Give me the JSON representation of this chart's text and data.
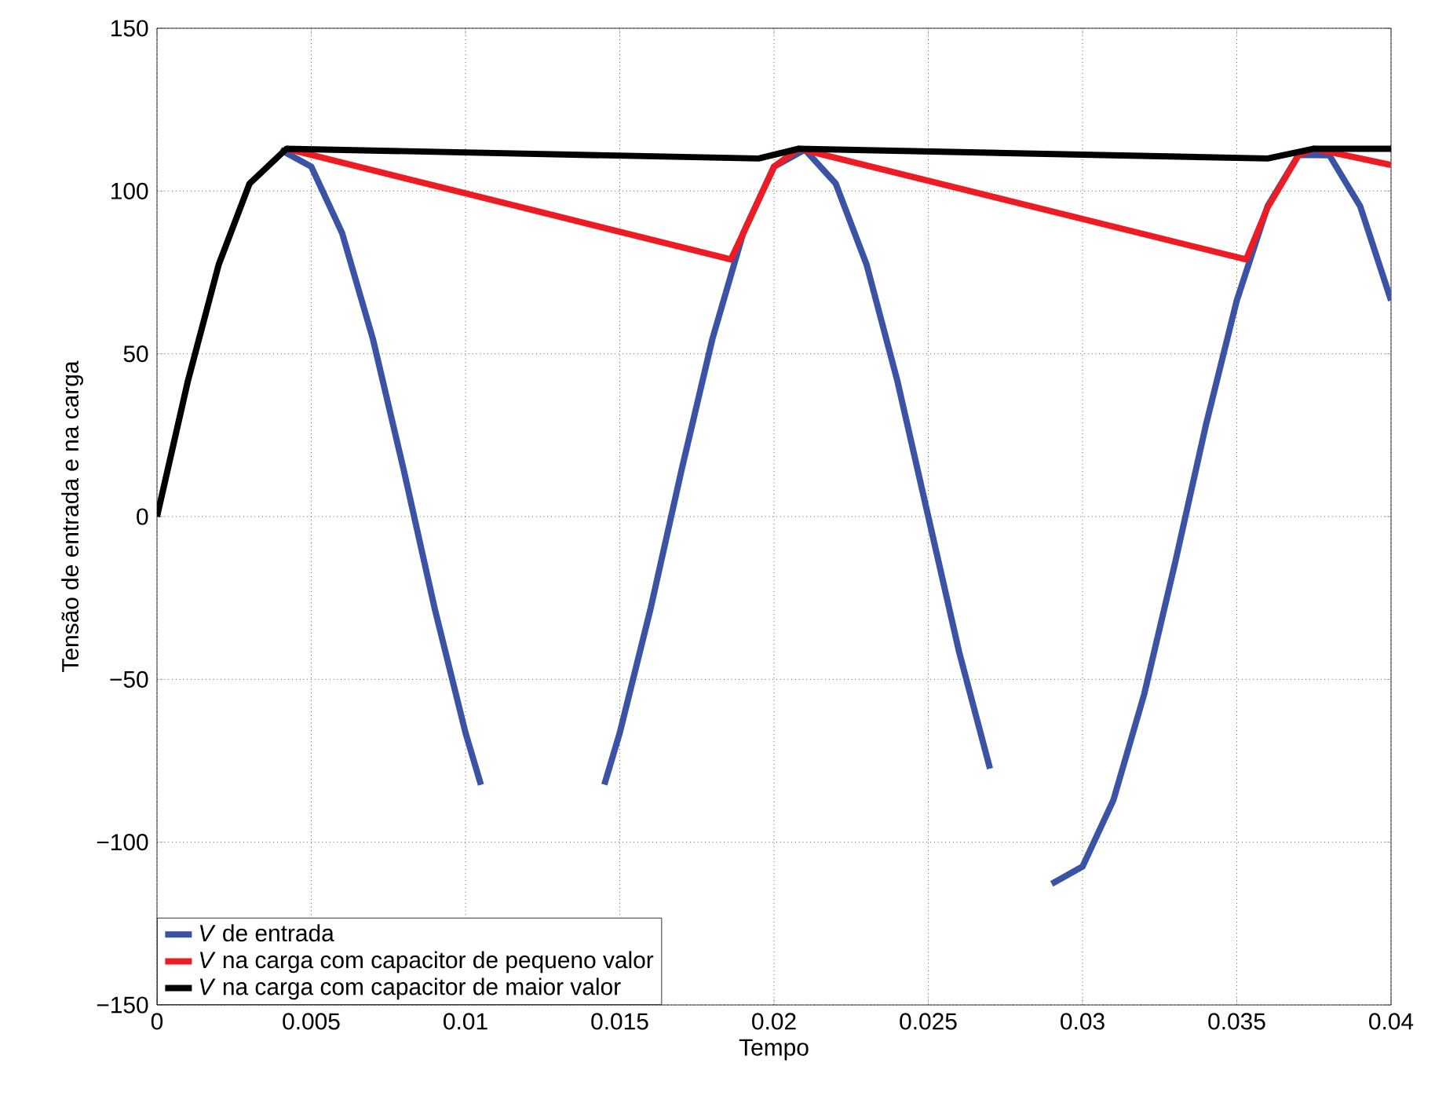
{
  "chart_data": {
    "type": "line",
    "xlabel": "Tempo",
    "ylabel": "Tensão de entrada e na carga",
    "xlim": [
      0,
      0.04
    ],
    "ylim": [
      -150,
      150
    ],
    "xticks": [
      0,
      0.005,
      0.01,
      0.015,
      0.02,
      0.025,
      0.03,
      0.035,
      0.04
    ],
    "yticks": [
      {
        "value": -150,
        "label": "−150"
      },
      {
        "value": -100,
        "label": "−100"
      },
      {
        "value": -50,
        "label": "−50"
      },
      0,
      50,
      100,
      150
    ],
    "grid": true,
    "legend": "bottom left",
    "line_style": "solid",
    "marker": "none",
    "series": [
      {
        "name": "*V* de entrada",
        "color": "#3a53a4",
        "x": [
          0.004,
          0.005,
          0.006,
          0.007,
          0.008,
          0.009,
          0.01,
          0.0105,
          0.011,
          0.012,
          0.013,
          0.014,
          0.0145,
          0.015,
          0.016,
          0.017,
          0.018,
          0.019,
          0.02,
          0.021,
          0.022,
          0.023,
          0.024,
          0.025,
          0.026,
          0.027,
          0.028,
          0.029,
          0.03,
          0.031,
          0.032,
          0.033,
          0.034,
          0.035,
          0.036,
          0.037,
          0.038,
          0.039,
          0.04
        ],
        "values": [
          112.7,
          107.5,
          87.1,
          54.5,
          14.2,
          -28.2,
          -66.4,
          -82.4,
          null,
          null,
          null,
          null,
          -82.3,
          -66.4,
          -28.2,
          14.2,
          54.5,
          87.1,
          107.5,
          112.7,
          102.3,
          77.4,
          41.6,
          0,
          -41.6,
          -77.4,
          null,
          -112.8,
          -107.5,
          -87.1,
          -54.5,
          -14.2,
          28.2,
          66.4,
          95.4,
          111.1,
          111,
          95.3,
          66.4
        ]
      },
      {
        "name": "*V* na carga com capacitor de pequeno valor",
        "color": "#ed1c24",
        "x": [
          0.0042,
          0.0186,
          0.019,
          0.02,
          0.0208,
          0.0353,
          0.036,
          0.037,
          0.0375,
          0.04
        ],
        "values": [
          113,
          79,
          87,
          107.5,
          113,
          79,
          95,
          111,
          113,
          108
        ]
      },
      {
        "name": "*V* na carga com capacitor de maior valor",
        "color": "#000000",
        "x": [
          0,
          0.001,
          0.002,
          0.003,
          0.0042,
          0.0195,
          0.0208,
          0.036,
          0.0375,
          0.04
        ],
        "values": [
          0,
          41.6,
          77.4,
          102.3,
          113,
          110,
          113,
          110,
          113,
          113
        ]
      }
    ]
  }
}
